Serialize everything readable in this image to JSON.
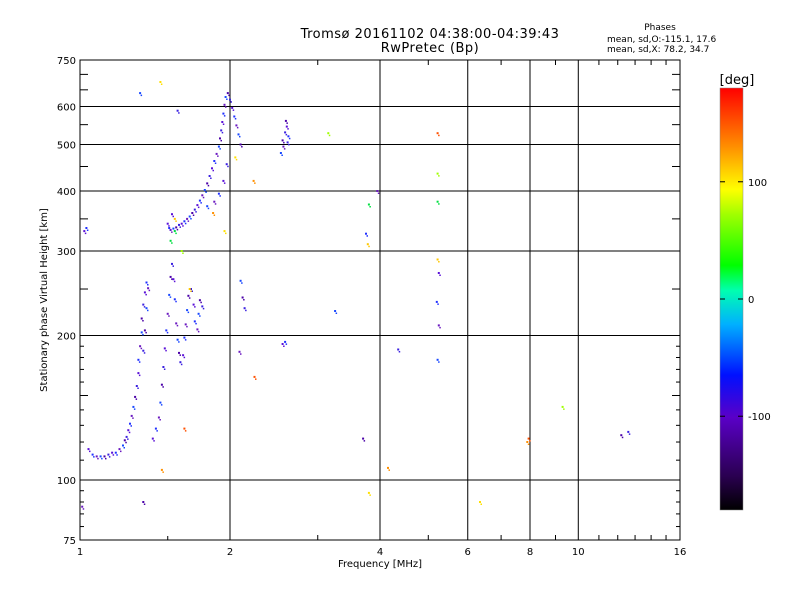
{
  "header": {
    "title": "Tromsø 20161102 04:38:00-04:39:43",
    "subtitle": "RwPretec (Bp)",
    "phase_heading": "Phases",
    "phase_stat_o": "mean, sd,O:-115.1, 17.6",
    "phase_stat_x": "mean, sd,X:  78.2, 34.7"
  },
  "colorbar": {
    "unit_label": "[deg]",
    "tick_labels": [
      "100",
      "0",
      "-100"
    ],
    "tick_values": [
      100,
      0,
      -100
    ],
    "range": [
      -180,
      180
    ]
  },
  "chart_data": {
    "type": "scatter",
    "title": "Tromsø 20161102 04:38:00-04:39:43",
    "subtitle": "RwPretec (Bp)",
    "xlabel": "Frequency [MHz]",
    "ylabel": "Stationary phase Virtual Height [km]",
    "x_scale": "log",
    "y_scale": "log",
    "xlim": [
      1,
      16
    ],
    "ylim": [
      75,
      750
    ],
    "x_ticks": [
      1,
      2,
      4,
      6,
      8,
      10,
      16
    ],
    "x_tick_labels": [
      "1",
      "2",
      "4",
      "6",
      "8",
      "10",
      "16"
    ],
    "y_ticks": [
      75,
      100,
      200,
      300,
      400,
      500,
      600,
      750
    ],
    "y_tick_labels": [
      "75",
      "100",
      "200",
      "300",
      "400",
      "500",
      "600",
      "750"
    ],
    "grid": true,
    "color_meaning": "phase [deg]",
    "series": [
      {
        "mode": "O",
        "points": [
          [
            1.04,
            116
          ],
          [
            1.06,
            113
          ],
          [
            1.08,
            112
          ],
          [
            1.1,
            112
          ],
          [
            1.12,
            112
          ],
          [
            1.14,
            113
          ],
          [
            1.16,
            114
          ],
          [
            1.18,
            114
          ],
          [
            1.2,
            116
          ],
          [
            1.22,
            118
          ],
          [
            1.23,
            121
          ],
          [
            1.24,
            123
          ],
          [
            1.25,
            127
          ],
          [
            1.26,
            131
          ],
          [
            1.27,
            136
          ],
          [
            1.28,
            142
          ],
          [
            1.29,
            149
          ],
          [
            1.3,
            157
          ],
          [
            1.31,
            167
          ],
          [
            1.31,
            178
          ],
          [
            1.32,
            190
          ],
          [
            1.33,
            203
          ],
          [
            1.33,
            217
          ],
          [
            1.34,
            232
          ],
          [
            1.35,
            246
          ],
          [
            1.36,
            258
          ],
          [
            1.37,
            251
          ],
          [
            1.36,
            228
          ],
          [
            1.35,
            205
          ],
          [
            1.34,
            186
          ],
          [
            1.4,
            122
          ],
          [
            1.42,
            128
          ],
          [
            1.44,
            135
          ],
          [
            1.45,
            145
          ],
          [
            1.46,
            158
          ],
          [
            1.47,
            172
          ],
          [
            1.48,
            188
          ],
          [
            1.49,
            205
          ],
          [
            1.5,
            222
          ],
          [
            1.51,
            243
          ],
          [
            1.52,
            265
          ],
          [
            1.53,
            282
          ],
          [
            1.54,
            262
          ],
          [
            1.55,
            238
          ],
          [
            1.56,
            212
          ],
          [
            1.57,
            196
          ],
          [
            1.58,
            184
          ],
          [
            1.59,
            176
          ],
          [
            1.61,
            182
          ],
          [
            1.62,
            198
          ],
          [
            1.63,
            211
          ],
          [
            1.64,
            226
          ],
          [
            1.65,
            242
          ],
          [
            1.67,
            250
          ],
          [
            1.69,
            232
          ],
          [
            1.7,
            214
          ],
          [
            1.72,
            206
          ],
          [
            1.73,
            222
          ],
          [
            1.74,
            237
          ],
          [
            1.76,
            230
          ],
          [
            1.5,
            342
          ],
          [
            1.51,
            335
          ],
          [
            1.52,
            332
          ],
          [
            1.54,
            334
          ],
          [
            1.56,
            336
          ],
          [
            1.58,
            340
          ],
          [
            1.6,
            342
          ],
          [
            1.62,
            346
          ],
          [
            1.64,
            350
          ],
          [
            1.66,
            354
          ],
          [
            1.68,
            360
          ],
          [
            1.7,
            366
          ],
          [
            1.72,
            374
          ],
          [
            1.74,
            382
          ],
          [
            1.76,
            392
          ],
          [
            1.78,
            402
          ],
          [
            1.8,
            415
          ],
          [
            1.82,
            430
          ],
          [
            1.84,
            446
          ],
          [
            1.86,
            462
          ],
          [
            1.88,
            478
          ],
          [
            1.9,
            495
          ],
          [
            1.91,
            515
          ],
          [
            1.92,
            535
          ],
          [
            1.93,
            557
          ],
          [
            1.94,
            580
          ],
          [
            1.95,
            605
          ],
          [
            1.96,
            628
          ],
          [
            1.98,
            640
          ],
          [
            2.0,
            620
          ],
          [
            2.02,
            596
          ],
          [
            2.04,
            572
          ],
          [
            2.06,
            548
          ],
          [
            2.08,
            525
          ],
          [
            2.1,
            500
          ],
          [
            1.97,
            455
          ],
          [
            1.94,
            420
          ],
          [
            1.9,
            395
          ],
          [
            1.86,
            380
          ],
          [
            1.8,
            372
          ],
          [
            2.55,
            510
          ],
          [
            2.58,
            530
          ],
          [
            2.6,
            545
          ],
          [
            2.62,
            520
          ],
          [
            2.56,
            495
          ],
          [
            2.53,
            480
          ],
          [
            2.59,
            560
          ],
          [
            2.61,
            505
          ],
          [
            1.02,
            330
          ],
          [
            1.03,
            335
          ],
          [
            1.01,
            88
          ],
          [
            1.32,
            640
          ],
          [
            1.34,
            90
          ],
          [
            1.57,
            588
          ],
          [
            1.53,
            358
          ],
          [
            3.75,
            326
          ],
          [
            3.95,
            400
          ],
          [
            2.1,
            260
          ],
          [
            2.12,
            240
          ],
          [
            2.14,
            228
          ],
          [
            2.55,
            192
          ],
          [
            2.58,
            194
          ],
          [
            2.09,
            185
          ],
          [
            3.25,
            225
          ],
          [
            3.7,
            122
          ],
          [
            4.35,
            187
          ],
          [
            5.25,
            270
          ],
          [
            5.2,
            235
          ],
          [
            5.25,
            210
          ],
          [
            5.22,
            178
          ],
          [
            12.2,
            124
          ],
          [
            12.6,
            126
          ]
        ]
      },
      {
        "mode": "X",
        "points": [
          [
            1.45,
            675
          ],
          [
            1.46,
            105
          ],
          [
            1.62,
            128
          ],
          [
            1.6,
            300
          ],
          [
            1.55,
            330
          ],
          [
            1.55,
            350
          ],
          [
            1.95,
            330
          ],
          [
            2.23,
            420
          ],
          [
            2.24,
            164
          ],
          [
            3.15,
            528
          ],
          [
            3.8,
            375
          ],
          [
            3.78,
            310
          ],
          [
            3.8,
            94
          ],
          [
            4.15,
            106
          ],
          [
            5.22,
            528
          ],
          [
            5.22,
            435
          ],
          [
            5.22,
            380
          ],
          [
            5.22,
            288
          ],
          [
            6.35,
            90
          ],
          [
            7.9,
            120
          ],
          [
            7.95,
            122
          ],
          [
            9.3,
            142
          ],
          [
            1.52,
            315
          ],
          [
            1.66,
            250
          ],
          [
            2.05,
            470
          ],
          [
            1.85,
            360
          ]
        ]
      }
    ]
  }
}
